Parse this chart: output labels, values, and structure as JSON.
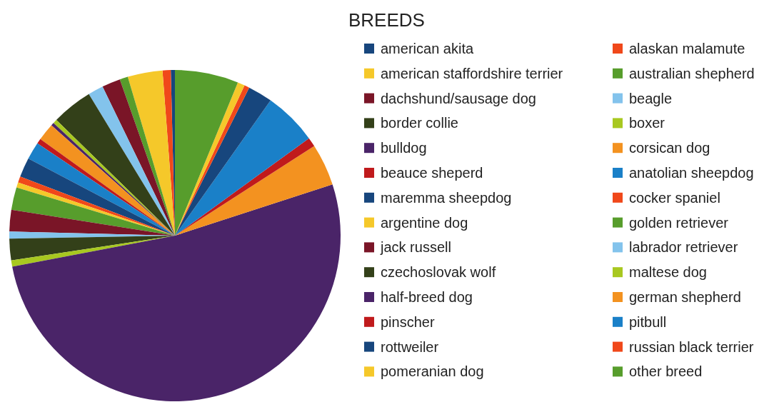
{
  "chart_data": {
    "type": "pie",
    "legend_title": "BREEDS",
    "legend": "right",
    "categories": [
      "american akita",
      "alaskan malamute",
      "american staffordshire terrier",
      "australian shepherd",
      "dachshund/sausage dog",
      "beagle",
      "border collie",
      "boxer",
      "bulldog",
      "corsican dog",
      "beauce sheperd",
      "anatolian sheepdog",
      "maremma sheepdog",
      "cocker spaniel",
      "argentine dog",
      "golden retriever",
      "jack russell",
      "labrador retriever",
      "czechoslovak wolf",
      "maltese dog",
      "half-breed dog",
      "german shepherd",
      "pinscher",
      "pitbull",
      "rottweiler",
      "russian black terrier",
      "pomeranian dog",
      "other breed"
    ],
    "values": [
      0.4,
      0.8,
      3.4,
      0.8,
      1.8,
      1.5,
      4.0,
      0.4,
      0.3,
      1.7,
      0.5,
      1.7,
      1.9,
      0.6,
      0.5,
      2.2,
      2.1,
      0.7,
      2.1,
      0.6,
      52.0,
      4.1,
      0.9,
      5.2,
      2.4,
      0.5,
      0.7,
      6.2
    ],
    "colors": [
      "#17467d",
      "#f0481a",
      "#f5c82a",
      "#579d2c",
      "#7a1527",
      "#83c3ec",
      "#334019",
      "#a8c820",
      "#4a2468",
      "#f39220",
      "#c01a1c",
      "#1a80c8",
      "#17467d",
      "#f0481a",
      "#f5c82a",
      "#579d2c",
      "#7a1527",
      "#83c3ec",
      "#334019",
      "#a8c820",
      "#4a2468",
      "#f39220",
      "#c01a1c",
      "#1a80c8",
      "#17467d",
      "#f0481a",
      "#f5c82a",
      "#579d2c"
    ]
  }
}
